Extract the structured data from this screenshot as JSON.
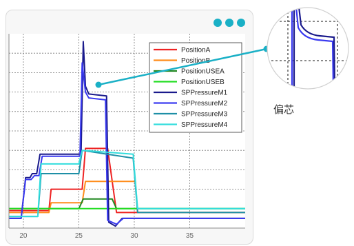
{
  "ui": {
    "callout_label": "偏芯",
    "accent_color": "#1ab0c6",
    "menu_icon": "more-dots-icon"
  },
  "chart_data": {
    "type": "line",
    "title": "",
    "xlabel": "",
    "ylabel": "",
    "xlim": [
      18.7,
      40
    ],
    "ylim": [
      0,
      10
    ],
    "xticks": [
      20,
      25,
      30,
      35
    ],
    "grid": true,
    "legend_position": "top-right",
    "series": [
      {
        "name": "PositionA",
        "color": "#ee2222",
        "points": [
          [
            18.7,
            0.9
          ],
          [
            22.3,
            0.9
          ],
          [
            22.5,
            2.0
          ],
          [
            25.3,
            2.0
          ],
          [
            25.6,
            4.1
          ],
          [
            27.6,
            4.1
          ],
          [
            28.4,
            0.8
          ],
          [
            40,
            0.8
          ]
        ]
      },
      {
        "name": "PositionB",
        "color": "#ff8c1a",
        "points": [
          [
            18.7,
            0.8
          ],
          [
            22.3,
            0.8
          ],
          [
            22.5,
            1.3
          ],
          [
            25.3,
            1.3
          ],
          [
            25.6,
            2.4
          ],
          [
            30.1,
            2.4
          ],
          [
            30.3,
            0.8
          ],
          [
            40,
            0.8
          ]
        ]
      },
      {
        "name": "PositionUSEA",
        "color": "#228822",
        "points": [
          [
            18.7,
            1.0
          ],
          [
            25.0,
            1.0
          ],
          [
            25.4,
            1.5
          ],
          [
            28.0,
            1.5
          ],
          [
            28.4,
            1.0
          ],
          [
            40,
            1.0
          ]
        ]
      },
      {
        "name": "PositionUSEB",
        "color": "#22dd22",
        "points": [
          [
            18.7,
            1.0
          ],
          [
            40,
            1.0
          ]
        ]
      },
      {
        "name": "SPPressureM1",
        "color": "#1a1a8c",
        "points": [
          [
            18.7,
            0.5
          ],
          [
            19.8,
            0.5
          ],
          [
            20.2,
            2.6
          ],
          [
            20.6,
            2.6
          ],
          [
            20.8,
            2.8
          ],
          [
            21.2,
            2.8
          ],
          [
            21.5,
            3.8
          ],
          [
            25.2,
            3.8
          ],
          [
            25.4,
            9.6
          ],
          [
            25.6,
            7.3
          ],
          [
            25.9,
            6.9
          ],
          [
            27.5,
            6.8
          ],
          [
            27.7,
            0.3
          ],
          [
            28.3,
            0.1
          ],
          [
            28.9,
            0.5
          ],
          [
            40,
            0.5
          ]
        ]
      },
      {
        "name": "SPPressureM2",
        "color": "#3a3af0",
        "points": [
          [
            18.7,
            0.5
          ],
          [
            19.8,
            0.5
          ],
          [
            20.2,
            2.5
          ],
          [
            20.7,
            2.5
          ],
          [
            21.0,
            2.7
          ],
          [
            21.4,
            2.7
          ],
          [
            21.7,
            3.7
          ],
          [
            25.1,
            3.7
          ],
          [
            25.3,
            8.5
          ],
          [
            25.6,
            7.0
          ],
          [
            25.9,
            6.7
          ],
          [
            27.4,
            6.6
          ],
          [
            27.6,
            0.4
          ],
          [
            28.4,
            0.2
          ],
          [
            29.0,
            0.5
          ],
          [
            40,
            0.5
          ]
        ]
      },
      {
        "name": "SPPressureM3",
        "color": "#1e8fa6",
        "points": [
          [
            18.7,
            0.6
          ],
          [
            21.3,
            0.6
          ],
          [
            21.6,
            2.8
          ],
          [
            25.0,
            2.8
          ],
          [
            25.3,
            4.0
          ],
          [
            29.9,
            3.6
          ],
          [
            30.3,
            0.8
          ],
          [
            40,
            0.8
          ]
        ]
      },
      {
        "name": "SPPressureM4",
        "color": "#33dddd",
        "points": [
          [
            18.7,
            0.6
          ],
          [
            21.3,
            0.6
          ],
          [
            21.6,
            3.3
          ],
          [
            25.0,
            3.3
          ],
          [
            25.3,
            4.0
          ],
          [
            29.9,
            3.8
          ],
          [
            30.3,
            1.0
          ],
          [
            40,
            1.0
          ]
        ]
      }
    ]
  }
}
